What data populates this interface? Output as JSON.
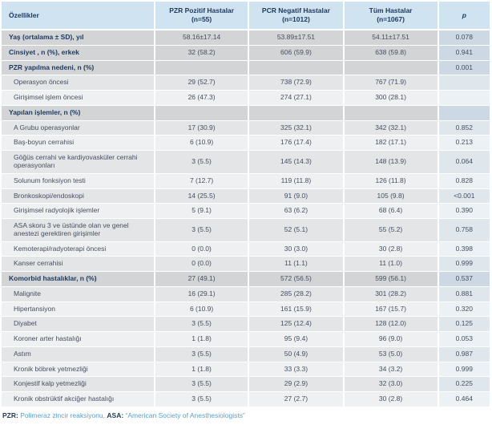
{
  "table": {
    "columns": [
      {
        "label": "Özellikler",
        "sub": ""
      },
      {
        "label": "PZR Pozitif Hastalar",
        "sub": "(n=55)"
      },
      {
        "label": "PCR Negatif  Hastalar",
        "sub": "(n=1012)"
      },
      {
        "label": "Tüm Hastalar",
        "sub": "(n=1067)"
      },
      {
        "label": "p",
        "sub": ""
      }
    ],
    "rows": [
      {
        "label": "Yaş (ortalama ± SD), yıl",
        "bold": true,
        "indent": false,
        "shade": "dark",
        "values": [
          "58.16±17.14",
          "53.89±17.51",
          "54.11±17.51",
          "0.078"
        ]
      },
      {
        "label": "Cinsiyet , n (%), erkek",
        "bold": true,
        "indent": false,
        "shade": "dark",
        "values": [
          "32 (58.2)",
          "606 (59.9)",
          "638 (59.8)",
          "0.941"
        ]
      },
      {
        "label": "PZR yapılma nedeni, n (%)",
        "bold": true,
        "indent": false,
        "shade": "dark",
        "values": [
          "",
          "",
          "",
          "0.001"
        ]
      },
      {
        "label": "Operasyon öncesi",
        "bold": false,
        "indent": true,
        "shade": "light",
        "values": [
          "29 (52.7)",
          "738 (72.9)",
          "767 (71.9)",
          ""
        ]
      },
      {
        "label": "Girişimsel işlem öncesi",
        "bold": false,
        "indent": true,
        "shade": "lighter",
        "values": [
          "26 (47.3)",
          "274 (27.1)",
          "300 (28.1)",
          ""
        ]
      },
      {
        "label": "Yapılan işlemler, n (%)",
        "bold": true,
        "indent": false,
        "shade": "dark",
        "values": [
          "",
          "",
          "",
          ""
        ]
      },
      {
        "label": "A Grubu operasyonlar",
        "bold": false,
        "indent": true,
        "shade": "light",
        "values": [
          "17 (30.9)",
          "325 (32.1)",
          "342 (32.1)",
          "0.852"
        ]
      },
      {
        "label": "Baş-boyun cerrahisi",
        "bold": false,
        "indent": true,
        "shade": "lighter",
        "values": [
          "6 (10.9)",
          "176 (17.4)",
          "182 (17.1)",
          "0.213"
        ]
      },
      {
        "label": "Göğüs cerrahi ve kardiyovasküler cerrahi operasyonları",
        "bold": false,
        "indent": true,
        "shade": "light",
        "values": [
          "3 (5.5)",
          "145 (14.3)",
          "148 (13.9)",
          "0.064"
        ]
      },
      {
        "label": "Solunum fonksiyon testi",
        "bold": false,
        "indent": true,
        "shade": "lighter",
        "values": [
          "7 (12.7)",
          "119 (11.8)",
          "126 (11.8)",
          "0.828"
        ]
      },
      {
        "label": "Bronkoskopi/endoskopi",
        "bold": false,
        "indent": true,
        "shade": "light",
        "values": [
          "14 (25.5)",
          "91 (9.0)",
          "105 (9.8)",
          "<0.001"
        ]
      },
      {
        "label": "Girişimsel radyolojik işlemler",
        "bold": false,
        "indent": true,
        "shade": "lighter",
        "values": [
          "5 (9.1)",
          "63 (6.2)",
          "68 (6.4)",
          "0.390"
        ]
      },
      {
        "label": "ASA skoru 3 ve üstünde olan ve genel anestezi gerektiren girişimler",
        "bold": false,
        "indent": true,
        "shade": "light",
        "values": [
          "3 (5.5)",
          "52 (5.1)",
          "55 (5.2)",
          "0.758"
        ]
      },
      {
        "label": "Kemoterapi/radyoterapi öncesi",
        "bold": false,
        "indent": true,
        "shade": "lighter",
        "values": [
          "0 (0.0)",
          "30 (3.0)",
          "30 (2.8)",
          "0.398"
        ]
      },
      {
        "label": "Kanser cerrahisi",
        "bold": false,
        "indent": true,
        "shade": "light",
        "values": [
          "0 (0.0)",
          "11 (1.1)",
          "11 (1.0)",
          "0.999"
        ]
      },
      {
        "label": "Komorbid hastalıklar, n (%)",
        "bold": true,
        "indent": false,
        "shade": "dark",
        "values": [
          "27 (49.1)",
          "572 (56.5)",
          "599 (56.1)",
          "0.537"
        ]
      },
      {
        "label": "Malignite",
        "bold": false,
        "indent": true,
        "shade": "light",
        "values": [
          "16 (29.1)",
          "285 (28.2)",
          "301 (28.2)",
          "0.881"
        ]
      },
      {
        "label": "Hipertansiyon",
        "bold": false,
        "indent": true,
        "shade": "lighter",
        "values": [
          "6 (10.9)",
          "161 (15.9)",
          "167 (15.7)",
          "0.320"
        ]
      },
      {
        "label": "Diyabet",
        "bold": false,
        "indent": true,
        "shade": "light",
        "values": [
          "3 (5.5)",
          "125 (12.4)",
          "128 (12.0)",
          "0.125"
        ]
      },
      {
        "label": "Koroner arter hastalığı",
        "bold": false,
        "indent": true,
        "shade": "lighter",
        "values": [
          "1 (1.8)",
          "95 (9.4)",
          "96 (9.0)",
          "0.053"
        ]
      },
      {
        "label": "Astım",
        "bold": false,
        "indent": true,
        "shade": "light",
        "values": [
          "3 (5.5)",
          "50 (4.9)",
          "53 (5.0)",
          "0.987"
        ]
      },
      {
        "label": "Kronik böbrek yetmezliği",
        "bold": false,
        "indent": true,
        "shade": "lighter",
        "values": [
          "1 (1.8)",
          "33 (3.3)",
          "34 (3.2)",
          "0.999"
        ]
      },
      {
        "label": "Konjestif kalp yetmezliği",
        "bold": false,
        "indent": true,
        "shade": "light",
        "values": [
          "3 (5.5)",
          "29 (2.9)",
          "32 (3.0)",
          "0.225"
        ]
      },
      {
        "label": "Kronik obstrüktif akciğer hastalığı",
        "bold": false,
        "indent": true,
        "shade": "lighter",
        "values": [
          "3 (5.5)",
          "27 (2.7)",
          "30 (2.8)",
          "0.464"
        ]
      }
    ]
  },
  "footnote": {
    "pzr_label": "PZR:",
    "pzr_text": " Polimeraz zincir reaksiyonu, ",
    "asa_label": "ASA:",
    "asa_text": " “American Society of Anesthesiologists”"
  },
  "colors": {
    "header_bg": "#cfe3f1",
    "section_row_bg": "#d2d4d6",
    "row_light_bg": "#e3e5e7",
    "row_lighter_bg": "#eff0f1",
    "p_col_section_bg": "#ccd8e3",
    "p_col_light_bg": "#dfe7ed",
    "p_col_lighter_bg": "#ecf1f5",
    "navy_text": "#1f3a60",
    "body_text": "#454f61",
    "footnote_blue": "#5a9fd4"
  }
}
